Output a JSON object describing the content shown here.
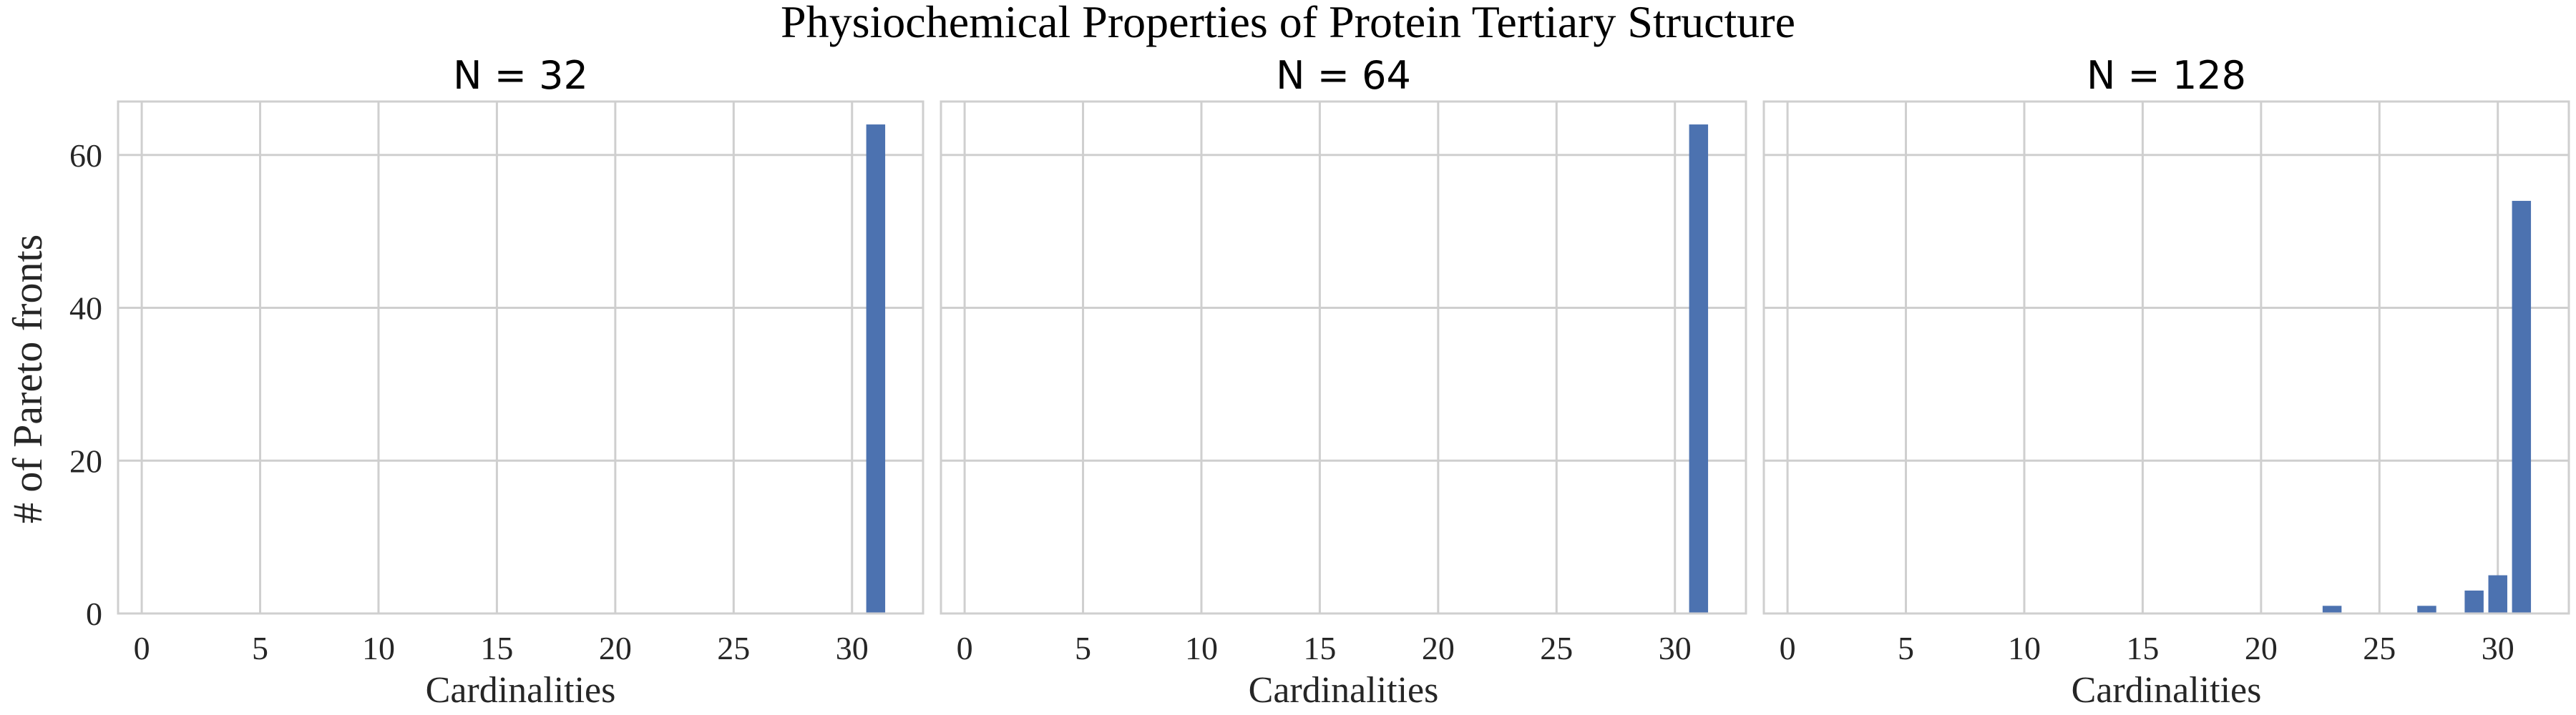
{
  "figure": {
    "suptitle": "Physiochemical Properties of Protein Tertiary Structure",
    "ylabel": "# of Pareto fronts",
    "bar_color": "#4c72b0",
    "grid_color": "#cfcfcf"
  },
  "chart_data": [
    {
      "type": "bar",
      "title": "N = 32",
      "xlabel": "Cardinalities",
      "ylabel": "# of Pareto fronts",
      "xticks": [
        0,
        5,
        10,
        15,
        20,
        25,
        30
      ],
      "yticks": [
        0,
        20,
        40,
        60
      ],
      "xlim": [
        -1,
        33
      ],
      "ylim": [
        0,
        67
      ],
      "grid": true,
      "x": [
        31
      ],
      "values": [
        64
      ]
    },
    {
      "type": "bar",
      "title": "N = 64",
      "xlabel": "Cardinalities",
      "ylabel": "",
      "xticks": [
        0,
        5,
        10,
        15,
        20,
        25,
        30
      ],
      "yticks": [
        0,
        20,
        40,
        60
      ],
      "xlim": [
        -1,
        33
      ],
      "ylim": [
        0,
        67
      ],
      "grid": true,
      "x": [
        31
      ],
      "values": [
        64
      ]
    },
    {
      "type": "bar",
      "title": "N = 128",
      "xlabel": "Cardinalities",
      "ylabel": "",
      "xticks": [
        0,
        5,
        10,
        15,
        20,
        25,
        30
      ],
      "yticks": [
        0,
        20,
        40,
        60
      ],
      "xlim": [
        -1,
        33
      ],
      "ylim": [
        0,
        67
      ],
      "grid": true,
      "x": [
        23,
        27,
        29,
        30,
        31
      ],
      "values": [
        1,
        1,
        3,
        5,
        54
      ]
    }
  ]
}
